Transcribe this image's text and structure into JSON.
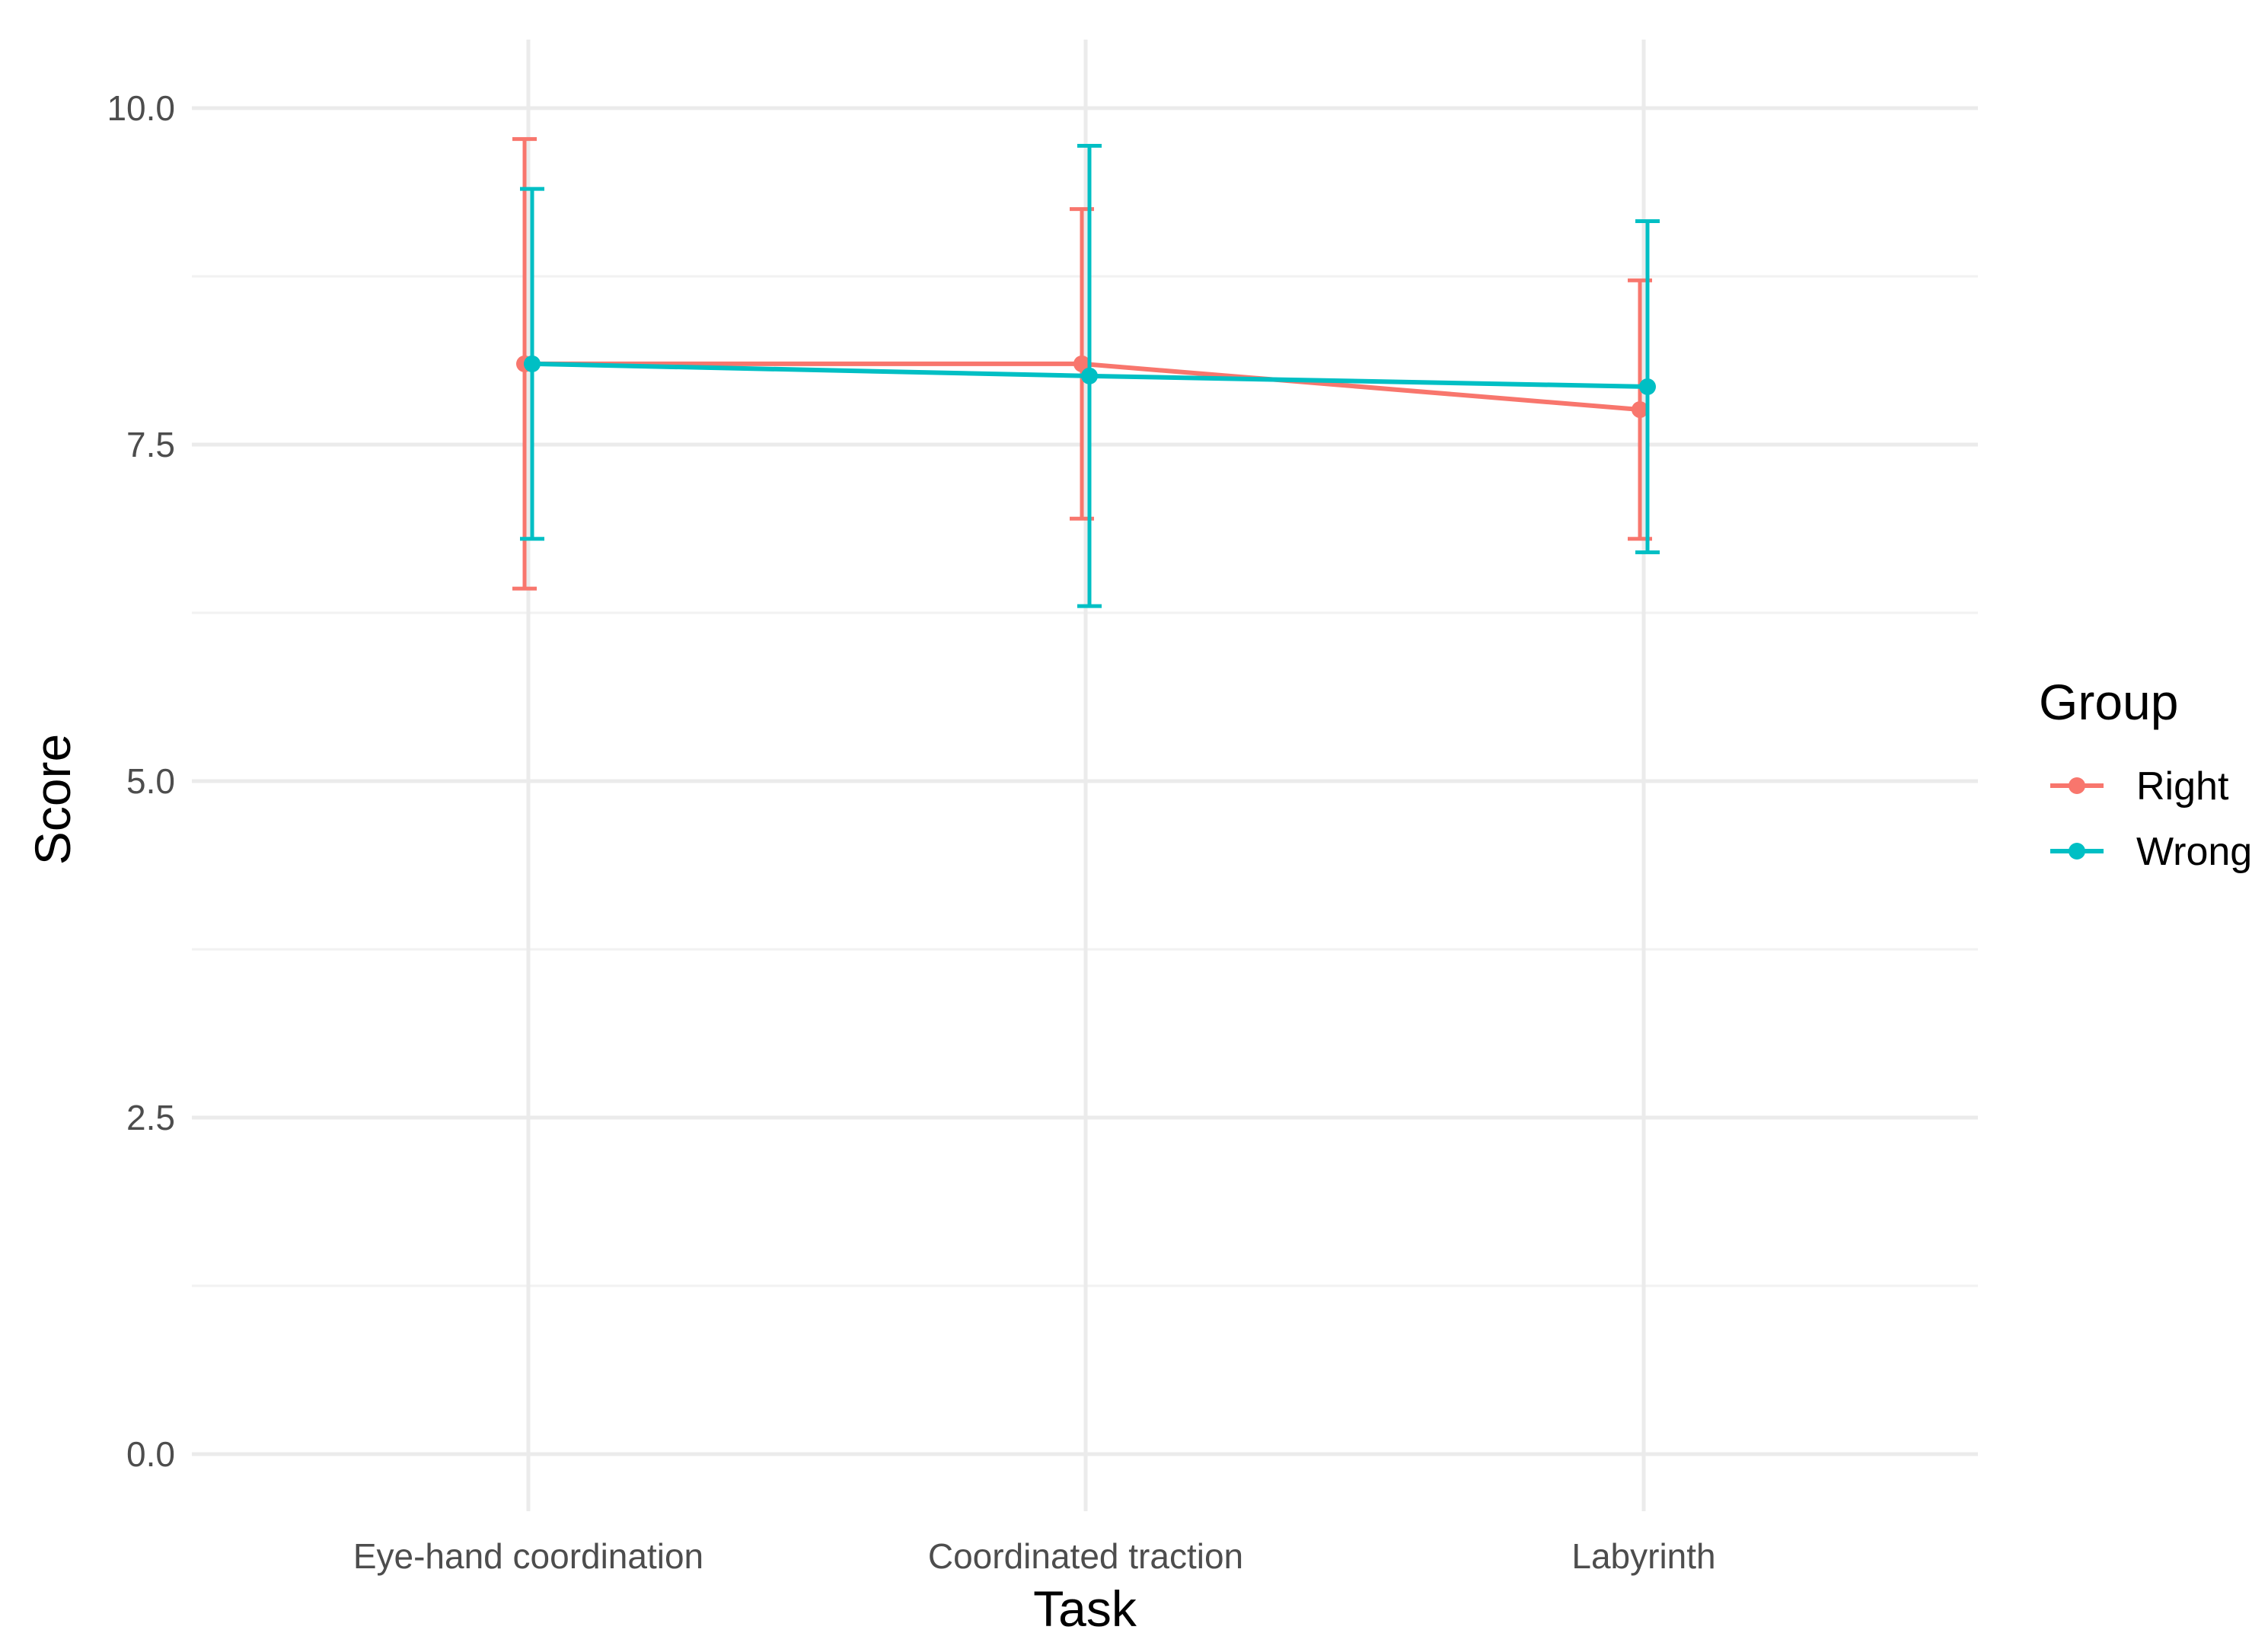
{
  "chart_data": {
    "type": "line",
    "xlabel": "Task",
    "ylabel": "Score",
    "categories": [
      "Eye-hand coordination",
      "Coordinated traction",
      "Labyrinth"
    ],
    "ylim": [
      -0.4,
      10.5
    ],
    "yticks": [
      0.0,
      2.5,
      5.0,
      7.5,
      10.0
    ],
    "ytick_labels": [
      "0.0",
      "2.5",
      "5.0",
      "7.5",
      "10.0"
    ],
    "grid": true,
    "error_bars": true,
    "legend": {
      "title": "Group",
      "position": "right"
    },
    "series": [
      {
        "name": "Right",
        "color": "#F8766D",
        "values": [
          8.1,
          8.1,
          7.76
        ],
        "lower": [
          6.43,
          6.95,
          6.8
        ],
        "upper": [
          9.77,
          9.25,
          8.72
        ]
      },
      {
        "name": "Wrong",
        "color": "#00BFC4",
        "values": [
          8.1,
          8.01,
          7.93
        ],
        "lower": [
          6.8,
          6.3,
          6.7
        ],
        "upper": [
          9.4,
          9.72,
          9.16
        ]
      }
    ]
  }
}
